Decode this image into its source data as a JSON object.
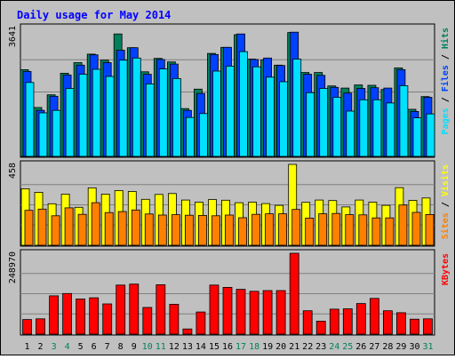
{
  "chart_data": {
    "type": "bar",
    "title": "Daily usage for May 2014",
    "categories": [
      "1",
      "2",
      "3",
      "4",
      "5",
      "6",
      "7",
      "8",
      "9",
      "10",
      "11",
      "12",
      "13",
      "14",
      "15",
      "16",
      "17",
      "18",
      "19",
      "20",
      "21",
      "22",
      "23",
      "24",
      "25",
      "26",
      "27",
      "28",
      "29",
      "30",
      "31"
    ],
    "weekend_days": [
      "3",
      "4",
      "10",
      "11",
      "17",
      "18",
      "24",
      "25",
      "31"
    ],
    "weekend_label_color": "#00805c",
    "weekday_label_color": "#000000",
    "panels": [
      {
        "id": "hits",
        "ymax_label": "3641",
        "ymax": 3641,
        "series": [
          {
            "name": "Hits",
            "color": "#00805c",
            "values": [
              2450,
              1380,
              1740,
              2350,
              2650,
              2890,
              2720,
              3460,
              3070,
              2390,
              2770,
              2670,
              1350,
              1900,
              2910,
              3080,
              3440,
              2750,
              2730,
              2580,
              3500,
              2370,
              2370,
              1990,
              1930,
              2020,
              2010,
              1890,
              2500,
              1330,
              1690
            ]
          },
          {
            "name": "Files",
            "color": "#0040ff",
            "values": [
              2400,
              1300,
              1700,
              2300,
              2580,
              2870,
              2650,
              3000,
              3070,
              2320,
              2740,
              2610,
              1300,
              1780,
              2880,
              3080,
              3460,
              2740,
              2780,
              2570,
              3510,
              2320,
              2290,
              1950,
              1790,
              1920,
              1940,
              1930,
              2450,
              1270,
              1670
            ]
          },
          {
            "name": "Pages",
            "color": "#00e0ff",
            "values": [
              2090,
              1230,
              1300,
              1920,
              2320,
              2460,
              2260,
              2720,
              2780,
              2050,
              2470,
              2200,
              1100,
              1210,
              2410,
              2550,
              2960,
              2530,
              2240,
              2110,
              2750,
              1800,
              1920,
              1670,
              1280,
              1600,
              1600,
              1510,
              2000,
              1090,
              1200
            ]
          }
        ]
      },
      {
        "id": "visits",
        "ymax_label": "458",
        "ymax": 458,
        "series": [
          {
            "name": "Visits",
            "color": "#ffff00",
            "values": [
              320,
              300,
              235,
              290,
              215,
              325,
              290,
              310,
              305,
              260,
              288,
              293,
              256,
              244,
              259,
              255,
              241,
              244,
              236,
              226,
              458,
              243,
              256,
              253,
              217,
              256,
              244,
              226,
              326,
              254,
              268
            ]
          },
          {
            "name": "Sites",
            "color": "#ff8000",
            "values": [
              198,
              205,
              167,
              212,
              175,
              241,
              185,
              191,
              200,
              177,
              171,
              173,
              170,
              169,
              167,
              171,
              156,
              175,
              178,
              178,
              203,
              154,
              178,
              180,
              173,
              172,
              155,
              155,
              228,
              186,
              174
            ]
          }
        ]
      },
      {
        "id": "kbytes",
        "ymax_label": "248970",
        "ymax": 248970,
        "series": [
          {
            "name": "KBytes",
            "color": "#ff0000",
            "values": [
              45000,
              47000,
              118000,
              125000,
              108000,
              112000,
              93000,
              151000,
              154000,
              82000,
              152000,
              92000,
              16000,
              68000,
              151000,
              144000,
              138000,
              132000,
              134000,
              134000,
              248970,
              72000,
              40000,
              77000,
              78000,
              94000,
              110000,
              72000,
              66000,
              46000,
              47000
            ]
          }
        ]
      }
    ],
    "bar_outline_color": "#000000",
    "gridline_color": "#808080",
    "panel_background": "#c0c0c0",
    "page_background": "#c0c0c0",
    "title_color": "#0000ff",
    "legend_placement": "right"
  }
}
